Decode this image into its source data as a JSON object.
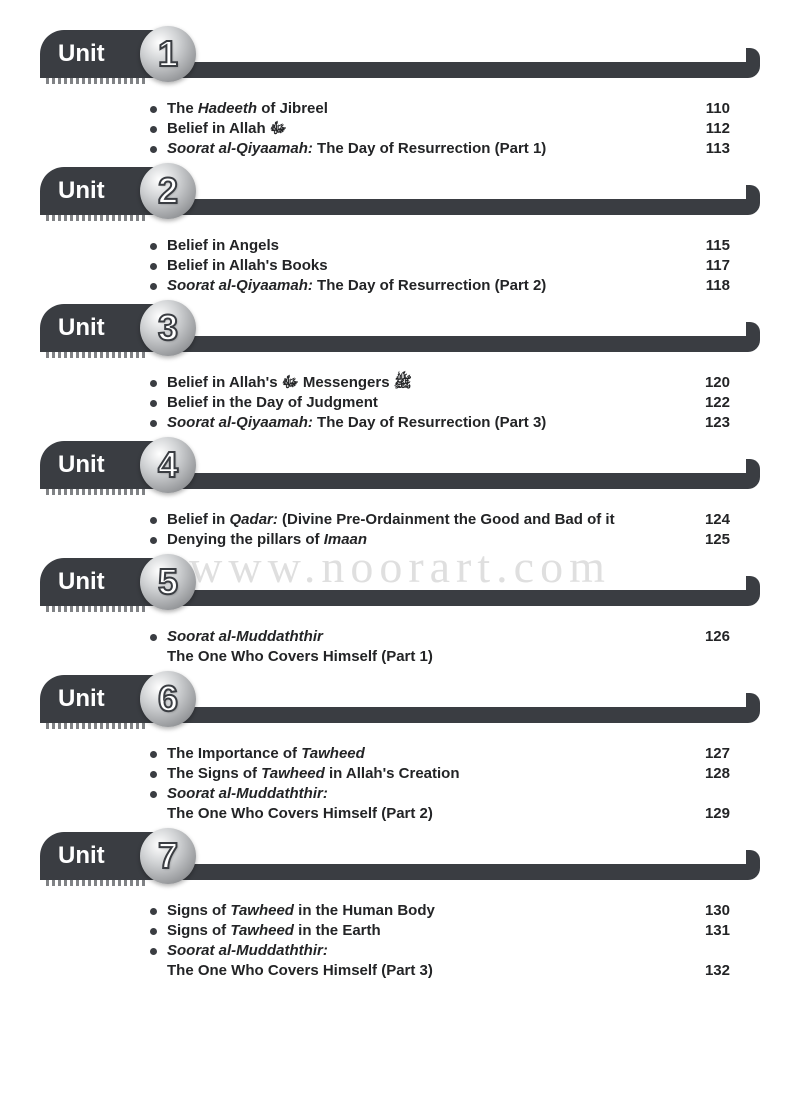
{
  "unit_label": "Unit",
  "watermark": "www.noorart.com",
  "colors": {
    "dark": "#3a3d42",
    "text": "#232426",
    "circle_light": "#ffffff",
    "circle_mid": "#d0d2d4",
    "circle_dark": "#8f9194"
  },
  "units": [
    {
      "number": "1",
      "items": [
        {
          "html": "The <em class='i'>Hadeeth</em> of Jibreel",
          "page": "110"
        },
        {
          "html": "Belief in Allah ﷻ",
          "page": "112"
        },
        {
          "html": "<em class='i'>Soorat al-Qiyaamah:</em> The Day of Resurrection (Part 1)",
          "page": "113"
        }
      ]
    },
    {
      "number": "2",
      "items": [
        {
          "html": "Belief in Angels",
          "page": "115"
        },
        {
          "html": "Belief in Allah's Books",
          "page": "117"
        },
        {
          "html": "<em class='i'>Soorat al-Qiyaamah:</em> The Day of Resurrection (Part 2)",
          "page": "118"
        }
      ]
    },
    {
      "number": "3",
      "items": [
        {
          "html": "Belief in Allah's ﷻ Messengers ﷺ",
          "page": "120"
        },
        {
          "html": "Belief in the Day of Judgment",
          "page": "122"
        },
        {
          "html": "<em class='i'>Soorat al-Qiyaamah:</em> The Day of Resurrection (Part 3)",
          "page": "123"
        }
      ]
    },
    {
      "number": "4",
      "items": [
        {
          "html": "Belief in <em class='i'>Qadar:</em> (Divine Pre-Ordainment the Good and Bad of it",
          "page": "124"
        },
        {
          "html": "Denying the pillars of <em class='i'>Imaan</em>",
          "page": "125"
        }
      ]
    },
    {
      "number": "5",
      "items": [
        {
          "html": "<em class='i'>Soorat al-Muddaththir</em>",
          "page": "126",
          "continuation": false
        },
        {
          "html": "The One Who Covers Himself (Part 1)",
          "page": "",
          "continuation": true
        }
      ]
    },
    {
      "number": "6",
      "items": [
        {
          "html": "The Importance of <em class='i'>Tawheed</em>",
          "page": "127"
        },
        {
          "html": "The Signs of <em class='i'>Tawheed</em> in Allah's Creation",
          "page": "128"
        },
        {
          "html": "<em class='i'>Soorat al-Muddaththir:</em>",
          "page": "",
          "continuation": false
        },
        {
          "html": "The One Who Covers Himself (Part 2)",
          "page": "129",
          "continuation": true
        }
      ]
    },
    {
      "number": "7",
      "items": [
        {
          "html": "Signs of <em class='i'>Tawheed</em> in the Human Body",
          "page": "130"
        },
        {
          "html": "Signs of <em class='i'>Tawheed</em> in the Earth",
          "page": "131"
        },
        {
          "html": "<em class='i'>Soorat al-Muddaththir:</em>",
          "page": "",
          "continuation": false
        },
        {
          "html": "The One Who Covers Himself (Part 3)",
          "page": "132",
          "continuation": true
        }
      ]
    }
  ]
}
